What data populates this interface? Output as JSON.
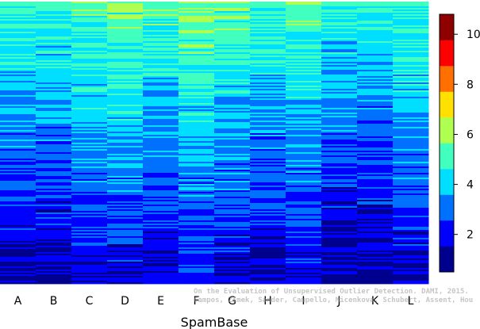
{
  "chart_data": {
    "type": "heatmap",
    "title": "",
    "xlabel": "SpamBase",
    "ylabel": "",
    "columns": [
      "A",
      "B",
      "C",
      "D",
      "E",
      "F",
      "G",
      "H",
      "I",
      "J",
      "K",
      "L"
    ],
    "color_scale": {
      "min": 0.5,
      "max": 10.8,
      "ticks": [
        2,
        4,
        6,
        8,
        10
      ],
      "colors": [
        "#00008f",
        "#0000ff",
        "#0070ff",
        "#00dfff",
        "#40ffbf",
        "#afff50",
        "#ffe000",
        "#ff7000",
        "#ff0000",
        "#8f0000"
      ]
    },
    "column_mean_level": [
      2.6,
      2.5,
      3.0,
      3.1,
      2.9,
      3.3,
      3.0,
      2.6,
      3.0,
      2.3,
      2.3,
      2.8
    ]
  },
  "watermark": {
    "line1": "On the Evaluation of Unsupervised Outlier Detection. DAMI, 2015.",
    "line2": "Campos, Zimek, Sander, Campello, Micenkova, Schubert, Assent, Houle"
  }
}
